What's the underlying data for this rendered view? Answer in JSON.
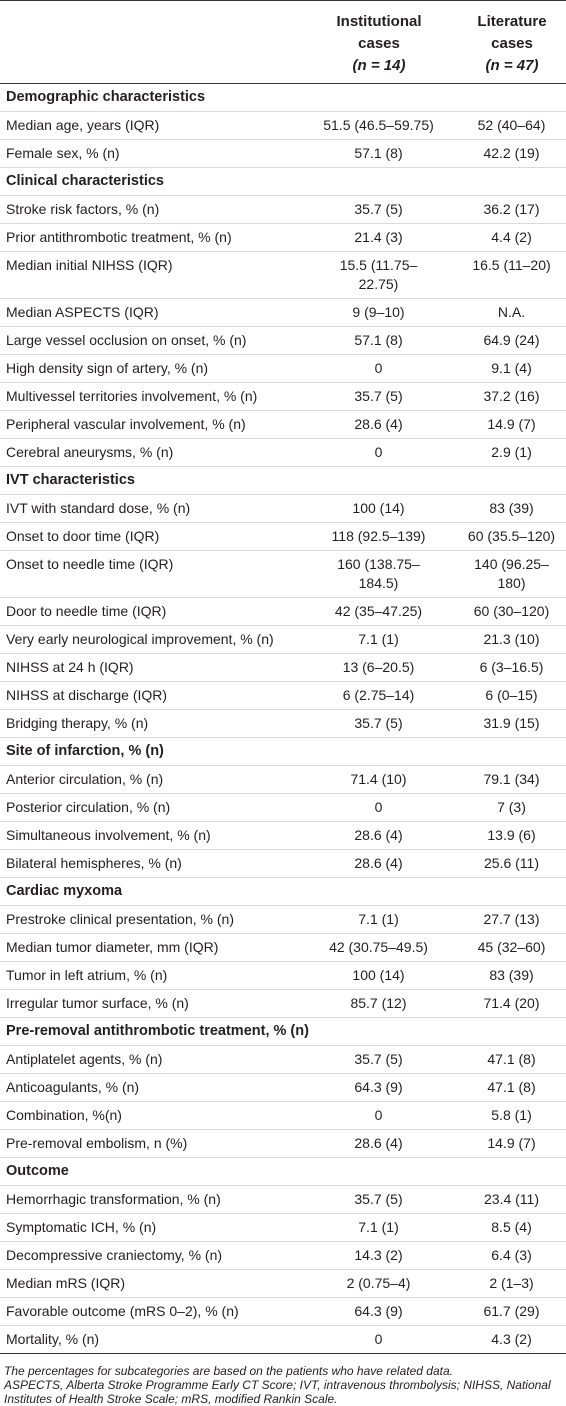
{
  "table": {
    "columns": [
      [
        "Institutional",
        "cases",
        "(n = 14)"
      ],
      [
        "Literature",
        "cases",
        "(n = 47)"
      ]
    ],
    "rows": [
      [
        "Demographic characteristics"
      ],
      [
        "Median age, years (IQR)",
        "51.5 (46.5–59.75)",
        "52 (40–64)"
      ],
      [
        "Female sex, % (n)",
        "57.1 (8)",
        "42.2 (19)"
      ],
      [
        "Clinical characteristics"
      ],
      [
        "Stroke risk factors, % (n)",
        "35.7 (5)",
        "36.2 (17)"
      ],
      [
        "Prior antithrombotic treatment, % (n)",
        "21.4 (3)",
        "4.4 (2)"
      ],
      [
        "Median initial NIHSS (IQR)",
        "15.5 (11.75–22.75)",
        "16.5 (11–20)"
      ],
      [
        "Median ASPECTS (IQR)",
        "9 (9–10)",
        "N.A."
      ],
      [
        "Large vessel occlusion on onset, % (n)",
        "57.1 (8)",
        "64.9 (24)"
      ],
      [
        "High density sign of artery, % (n)",
        "0",
        "9.1 (4)"
      ],
      [
        "Multivessel territories involvement, % (n)",
        "35.7 (5)",
        "37.2 (16)"
      ],
      [
        "Peripheral vascular involvement, % (n)",
        "28.6 (4)",
        "14.9 (7)"
      ],
      [
        "Cerebral aneurysms, % (n)",
        "0",
        "2.9 (1)"
      ],
      [
        "IVT characteristics"
      ],
      [
        "IVT with standard dose, % (n)",
        "100 (14)",
        "83 (39)"
      ],
      [
        "Onset to door time (IQR)",
        "118 (92.5–139)",
        "60 (35.5–120)"
      ],
      [
        "Onset to needle time (IQR)",
        "160 (138.75–184.5)",
        "140 (96.25–180)"
      ],
      [
        "Door to needle time (IQR)",
        "42 (35–47.25)",
        "60 (30–120)"
      ],
      [
        "Very early neurological improvement, % (n)",
        "7.1 (1)",
        "21.3 (10)"
      ],
      [
        "NIHSS at 24 h (IQR)",
        "13 (6–20.5)",
        "6 (3–16.5)"
      ],
      [
        "NIHSS at discharge (IQR)",
        "6 (2.75–14)",
        "6 (0–15)"
      ],
      [
        "Bridging therapy, % (n)",
        "35.7 (5)",
        "31.9 (15)"
      ],
      [
        "Site of infarction, % (n)"
      ],
      [
        "Anterior circulation, % (n)",
        "71.4 (10)",
        "79.1 (34)"
      ],
      [
        "Posterior circulation, % (n)",
        "0",
        "7 (3)"
      ],
      [
        "Simultaneous involvement, % (n)",
        "28.6 (4)",
        "13.9 (6)"
      ],
      [
        "Bilateral hemispheres, % (n)",
        "28.6 (4)",
        "25.6 (11)"
      ],
      [
        "Cardiac myxoma"
      ],
      [
        "Prestroke clinical presentation, % (n)",
        "7.1 (1)",
        "27.7 (13)"
      ],
      [
        "Median tumor diameter, mm (IQR)",
        "42 (30.75–49.5)",
        "45 (32–60)"
      ],
      [
        "Tumor in left atrium, % (n)",
        "100 (14)",
        "83 (39)"
      ],
      [
        "Irregular tumor surface, % (n)",
        "85.7 (12)",
        "71.4 (20)"
      ],
      [
        "Pre-removal antithrombotic treatment, % (n)"
      ],
      [
        "Antiplatelet agents, % (n)",
        "35.7 (5)",
        "47.1 (8)"
      ],
      [
        "Anticoagulants, % (n)",
        "64.3 (9)",
        "47.1 (8)"
      ],
      [
        "Combination, %(n)",
        "0",
        "5.8 (1)"
      ],
      [
        "Pre-removal embolism, n (%)",
        "28.6 (4)",
        "14.9 (7)"
      ],
      [
        "Outcome"
      ],
      [
        "Hemorrhagic transformation, % (n)",
        "35.7 (5)",
        "23.4 (11)"
      ],
      [
        "Symptomatic ICH, % (n)",
        "7.1 (1)",
        "8.5 (4)"
      ],
      [
        "Decompressive craniectomy, % (n)",
        "14.3 (2)",
        "6.4 (3)"
      ],
      [
        "Median mRS (IQR)",
        "2 (0.75–4)",
        "2 (1–3)"
      ],
      [
        "Favorable outcome (mRS 0–2), % (n)",
        "64.3 (9)",
        "61.7 (29)"
      ],
      [
        "Mortality, % (n)",
        "0",
        "4.3 (2)"
      ]
    ],
    "notes": [
      "The percentages for subcategories are based on the patients who have related data.",
      "ASPECTS, Alberta Stroke Programme Early CT Score; IVT, intravenous thrombolysis; NIHSS, National Institutes of Health Stroke Scale; mRS, modified Rankin Scale."
    ]
  }
}
